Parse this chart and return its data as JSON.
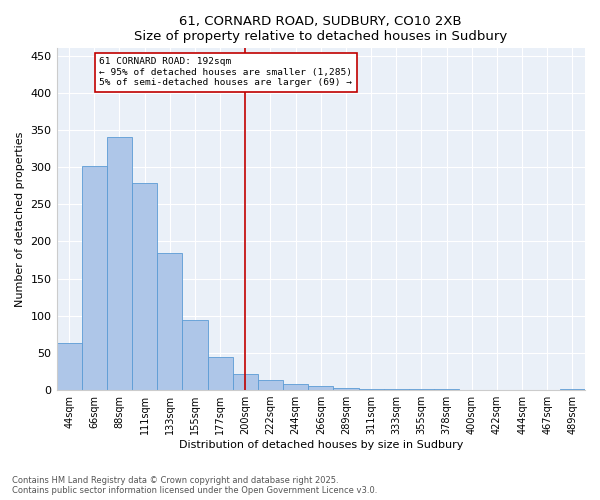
{
  "title1": "61, CORNARD ROAD, SUDBURY, CO10 2XB",
  "title2": "Size of property relative to detached houses in Sudbury",
  "xlabel": "Distribution of detached houses by size in Sudbury",
  "ylabel": "Number of detached properties",
  "bar_labels": [
    "44sqm",
    "66sqm",
    "88sqm",
    "111sqm",
    "133sqm",
    "155sqm",
    "177sqm",
    "200sqm",
    "222sqm",
    "244sqm",
    "266sqm",
    "289sqm",
    "311sqm",
    "333sqm",
    "355sqm",
    "378sqm",
    "400sqm",
    "422sqm",
    "444sqm",
    "467sqm",
    "489sqm"
  ],
  "bar_values": [
    63,
    301,
    341,
    279,
    185,
    94,
    45,
    22,
    13,
    8,
    5,
    3,
    2,
    1,
    1,
    1,
    0,
    0,
    0,
    0,
    2
  ],
  "bar_color": "#aec6e8",
  "bar_edge_color": "#5b9bd5",
  "vline_x": 7,
  "vline_color": "#c00000",
  "annotation_text": "61 CORNARD ROAD: 192sqm\n← 95% of detached houses are smaller (1,285)\n5% of semi-detached houses are larger (69) →",
  "annotation_box_color": "#c00000",
  "ylim": [
    0,
    460
  ],
  "yticks": [
    0,
    50,
    100,
    150,
    200,
    250,
    300,
    350,
    400,
    450
  ],
  "bg_color": "#eaf0f8",
  "footer1": "Contains HM Land Registry data © Crown copyright and database right 2025.",
  "footer2": "Contains public sector information licensed under the Open Government Licence v3.0."
}
